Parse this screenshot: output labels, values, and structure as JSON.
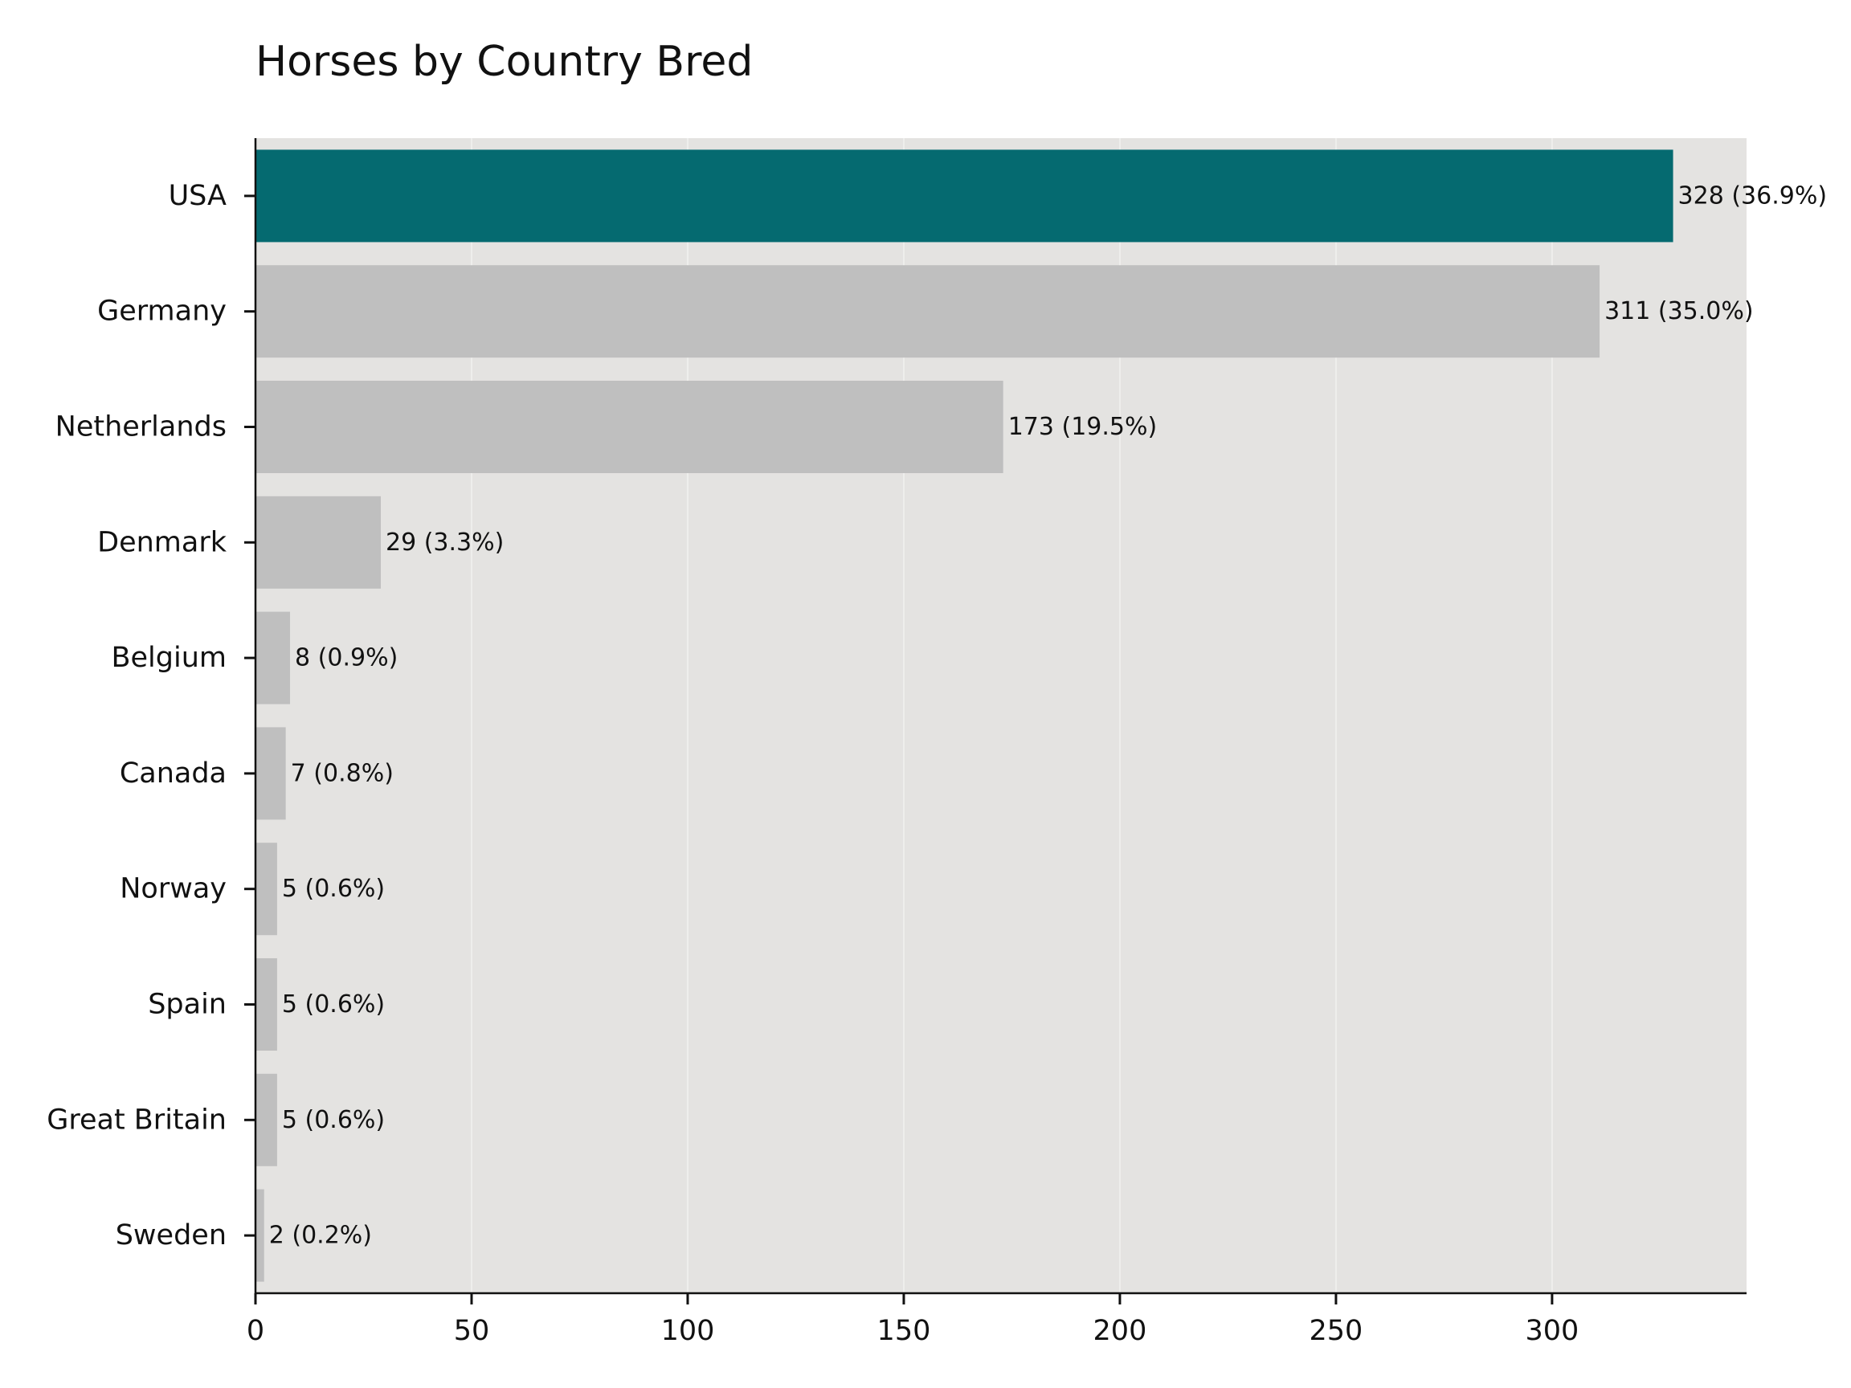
{
  "chart_data": {
    "type": "bar",
    "orientation": "horizontal",
    "title": "Horses by Country Bred",
    "xlabel": "",
    "ylabel": "",
    "categories": [
      "USA",
      "Germany",
      "Netherlands",
      "Denmark",
      "Belgium",
      "Canada",
      "Norway",
      "Spain",
      "Great Britain",
      "Sweden"
    ],
    "values": [
      328,
      311,
      173,
      29,
      8,
      7,
      5,
      5,
      5,
      2
    ],
    "data_labels": [
      "328 (36.9%)",
      "311 (35.0%)",
      "173 (19.5%)",
      "29 (3.3%)",
      "8 (0.9%)",
      "7 (0.8%)",
      "5 (0.6%)",
      "5 (0.6%)",
      "5 (0.6%)",
      "2 (0.2%)"
    ],
    "highlight_index": 0,
    "xlim": [
      0,
      345
    ],
    "xticks": [
      0,
      50,
      100,
      150,
      200,
      250,
      300
    ],
    "grid": "vertical",
    "legend": "none",
    "colors": {
      "highlight": "#056a70",
      "bar": "#bfbfbf",
      "plot_background": "#e4e3e1",
      "grid": "#f2f1ef",
      "axis": "#111111"
    }
  }
}
